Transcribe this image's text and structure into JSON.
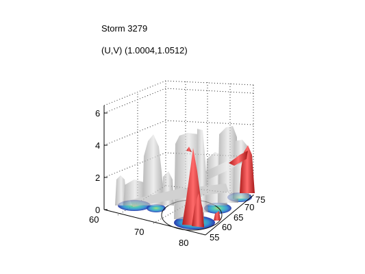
{
  "chart_data": {
    "type": "surface3d",
    "title": "Storm 3279",
    "subtitle": "(U,V) (1.0004,1.0512)",
    "xlabel": "",
    "ylabel": "",
    "zlabel": "",
    "x_ticks": [
      "60",
      "70",
      "80"
    ],
    "y_ticks": [
      "55",
      "60",
      "65",
      "70",
      "75"
    ],
    "z_ticks": [
      "0",
      "2",
      "4",
      "6"
    ],
    "xlim": [
      60,
      82
    ],
    "ylim": [
      53,
      76
    ],
    "zlim": [
      0,
      6.5
    ],
    "grid": true,
    "surfaces": [
      {
        "name": "",
        "color": "#b8b8b8",
        "opacity": 0.6
      },
      {
        "name": "",
        "color": "#e23b3b",
        "opacity": 0.9
      }
    ],
    "base_colormap": [
      "#1f2fa8",
      "#2a8cd0",
      "#3fc0b0",
      "#9bd86a"
    ],
    "ellipse": {
      "center": [
        70,
        62
      ],
      "note": ""
    }
  }
}
